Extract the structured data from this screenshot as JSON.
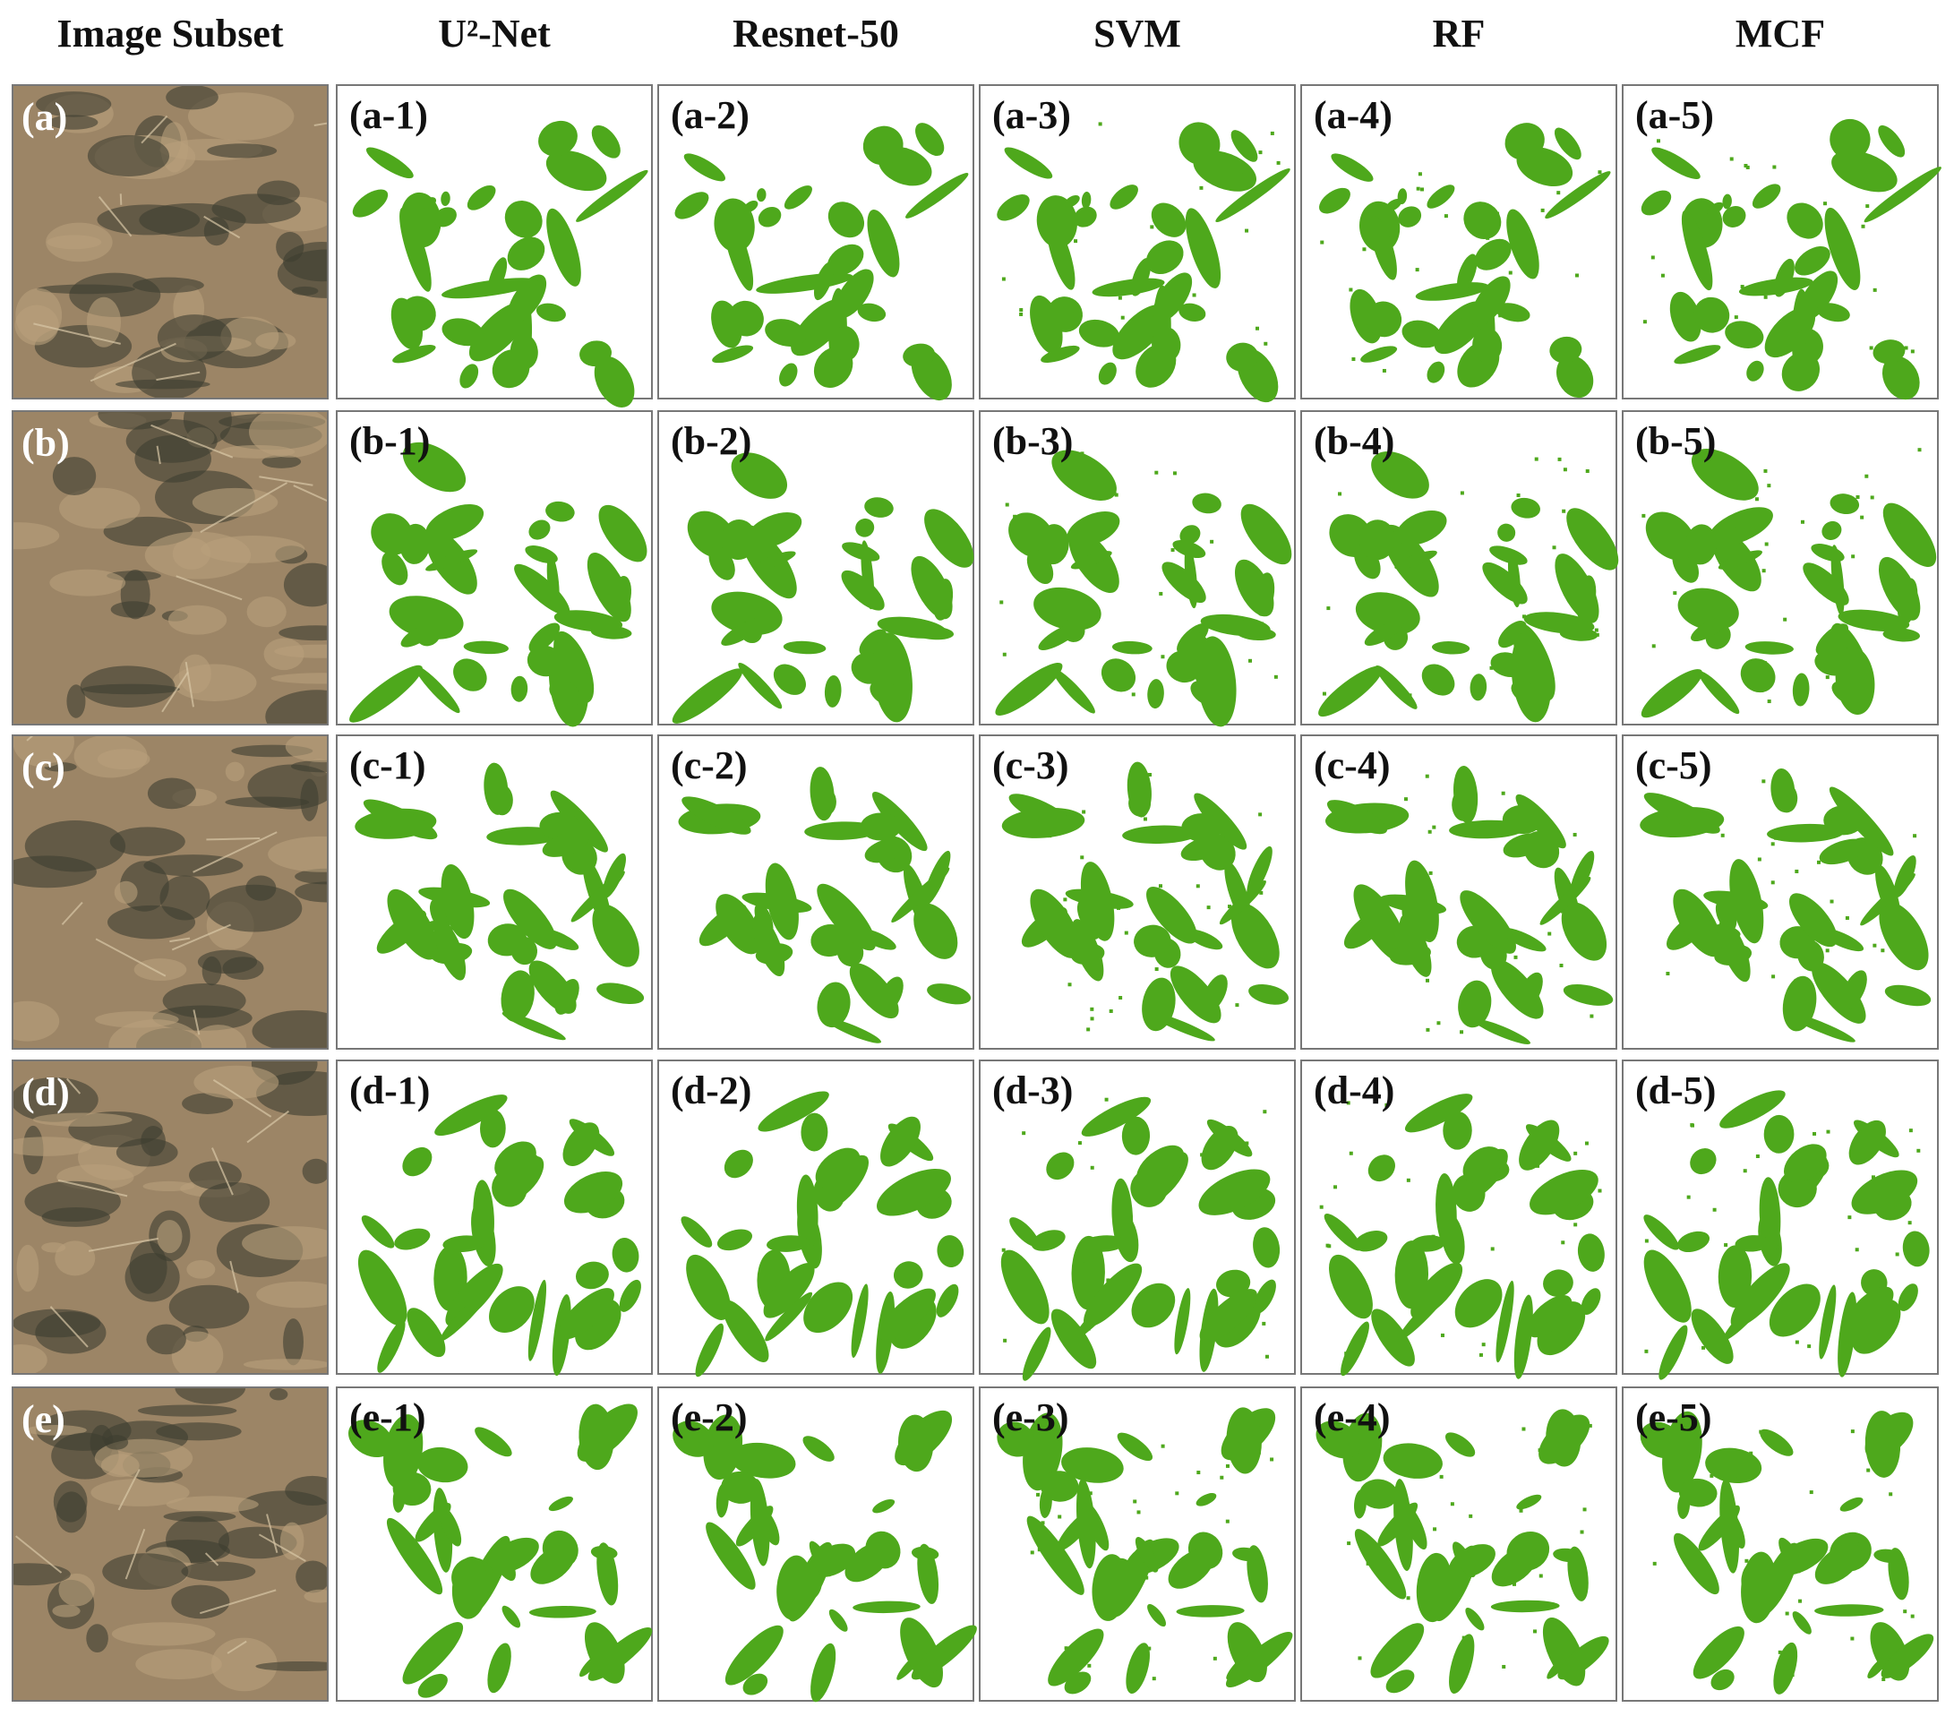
{
  "columns": [
    "Image Subset",
    "U²-Net",
    "Resnet-50",
    "SVM",
    "RF",
    "MCF"
  ],
  "rows": [
    {
      "label": "(a)",
      "panels": [
        "(a-1)",
        "(a-2)",
        "(a-3)",
        "(a-4)",
        "(a-5)"
      ]
    },
    {
      "label": "(b)",
      "panels": [
        "(b-1)",
        "(b-2)",
        "(b-3)",
        "(b-4)",
        "(b-5)"
      ]
    },
    {
      "label": "(c)",
      "panels": [
        "(c-1)",
        "(c-2)",
        "(c-3)",
        "(c-4)",
        "(c-5)"
      ]
    },
    {
      "label": "(d)",
      "panels": [
        "(d-1)",
        "(d-2)",
        "(d-3)",
        "(d-4)",
        "(d-5)"
      ]
    },
    {
      "label": "(e)",
      "panels": [
        "(e-1)",
        "(e-2)",
        "(e-3)",
        "(e-4)",
        "(e-5)"
      ]
    }
  ]
}
